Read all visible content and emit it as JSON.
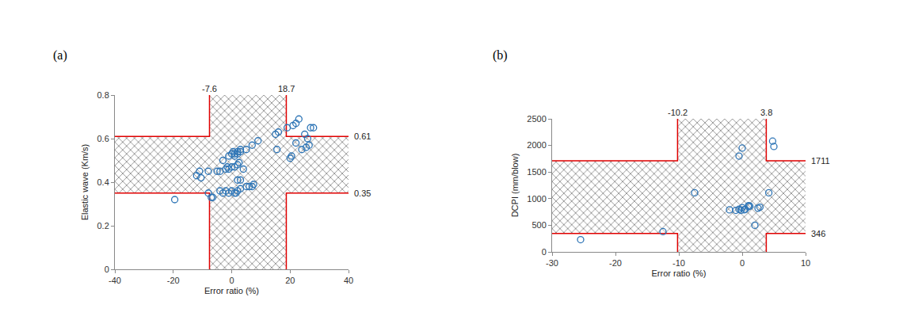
{
  "chart_data": [
    {
      "type": "scatter",
      "title": "(a)",
      "x_label": "Error ratio (%)",
      "y_label": "Elastic wave (Km/s)",
      "xlim": [
        -40,
        40
      ],
      "xticks": [
        -40,
        -20,
        0,
        20,
        40
      ],
      "ylim": [
        0,
        0.8
      ],
      "yticks": [
        0,
        0.2,
        0.4,
        0.6,
        0.8
      ],
      "grid": false,
      "thresholds": {
        "x": [
          -7.6,
          18.7
        ],
        "y": [
          0.35,
          0.61
        ],
        "color": "#e00000"
      },
      "series": [
        {
          "color": "#2e75b6",
          "marker": "circle-open",
          "x": [
            -19.5,
            -12,
            -11,
            -10.5,
            -8,
            -7,
            -6.5,
            -8,
            -5,
            -4,
            -3,
            -2,
            -1.5,
            -1,
            0,
            1,
            2,
            2.5,
            -1,
            0,
            1,
            2,
            2,
            3,
            3,
            1,
            0.5,
            -2,
            -3,
            -4,
            -1,
            0,
            1,
            1.5,
            2,
            3,
            2,
            3,
            5,
            6,
            7,
            7.5,
            4,
            5,
            7,
            9,
            15,
            16,
            15.5,
            19,
            20,
            20.5,
            21,
            22,
            22,
            23,
            24,
            25,
            25.5,
            26,
            26.5,
            27,
            28
          ],
          "values": [
            0.32,
            0.43,
            0.45,
            0.42,
            0.35,
            0.33,
            0.33,
            0.45,
            0.45,
            0.45,
            0.5,
            0.46,
            0.47,
            0.46,
            0.47,
            0.47,
            0.48,
            0.49,
            0.52,
            0.53,
            0.53,
            0.54,
            0.53,
            0.54,
            0.55,
            0.52,
            0.54,
            0.36,
            0.35,
            0.36,
            0.35,
            0.36,
            0.35,
            0.35,
            0.36,
            0.37,
            0.41,
            0.41,
            0.38,
            0.38,
            0.38,
            0.39,
            0.46,
            0.55,
            0.57,
            0.59,
            0.62,
            0.63,
            0.55,
            0.65,
            0.51,
            0.52,
            0.66,
            0.67,
            0.58,
            0.69,
            0.55,
            0.62,
            0.56,
            0.6,
            0.57,
            0.65,
            0.65
          ]
        }
      ]
    },
    {
      "type": "scatter",
      "title": "(b)",
      "x_label": "Error ratio (%)",
      "y_label": "DCPI (mm/blow)",
      "xlim": [
        -30,
        10
      ],
      "xticks": [
        -30,
        -20,
        -10,
        0,
        10
      ],
      "ylim": [
        0,
        2500
      ],
      "yticks": [
        0,
        500,
        1000,
        1500,
        2000,
        2500
      ],
      "grid": false,
      "thresholds": {
        "x": [
          -10.2,
          3.8
        ],
        "y": [
          346,
          1711
        ],
        "color": "#e00000"
      },
      "series": [
        {
          "color": "#2e75b6",
          "marker": "circle-open",
          "x": [
            -25.5,
            -12.5,
            -7.5,
            -2,
            -1,
            -0.5,
            0,
            0.5,
            1,
            1,
            1.2,
            -0.5,
            0,
            2,
            2.8,
            2.5,
            4.2,
            4.8,
            5,
            -0.2,
            0.3
          ],
          "values": [
            230,
            380,
            1110,
            790,
            780,
            800,
            830,
            800,
            850,
            870,
            860,
            1800,
            1950,
            500,
            840,
            820,
            1110,
            2080,
            1980,
            780,
            790
          ]
        }
      ]
    }
  ]
}
